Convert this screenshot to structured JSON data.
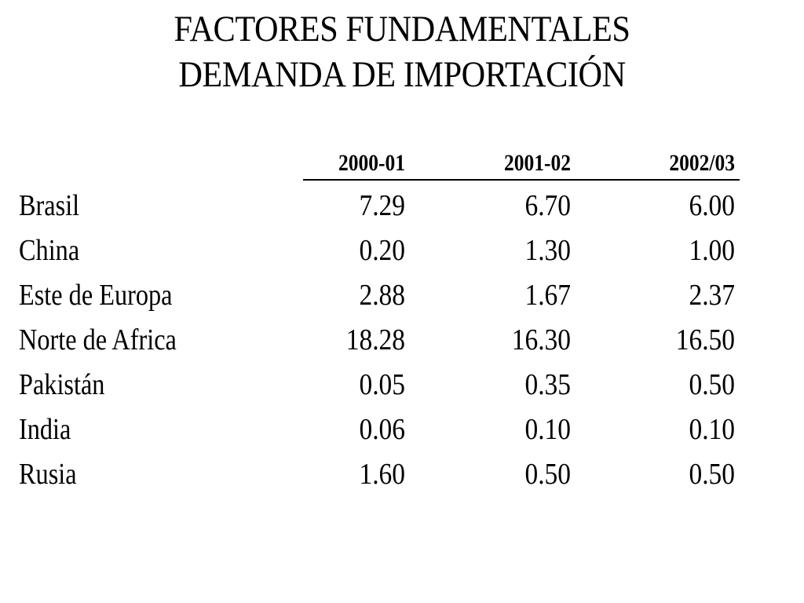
{
  "title": {
    "line1": "FACTORES FUNDAMENTALES",
    "line2": "DEMANDA DE IMPORTACIÓN"
  },
  "table": {
    "columns": [
      "2000-01",
      "2001-02",
      "2002/03"
    ],
    "rows": [
      {
        "label": "Brasil",
        "values": [
          "7.29",
          "6.70",
          "6.00"
        ]
      },
      {
        "label": "China",
        "values": [
          "0.20",
          "1.30",
          "1.00"
        ]
      },
      {
        "label": "Este de Europa",
        "values": [
          "2.88",
          "1.67",
          "2.37"
        ]
      },
      {
        "label": "Norte de Africa",
        "values": [
          "18.28",
          "16.30",
          "16.50"
        ]
      },
      {
        "label": "Pakistán",
        "values": [
          "0.05",
          "0.35",
          "0.50"
        ]
      },
      {
        "label": "India",
        "values": [
          "0.06",
          "0.10",
          "0.10"
        ]
      },
      {
        "label": "Rusia",
        "values": [
          "1.60",
          "0.50",
          "0.50"
        ]
      }
    ]
  }
}
